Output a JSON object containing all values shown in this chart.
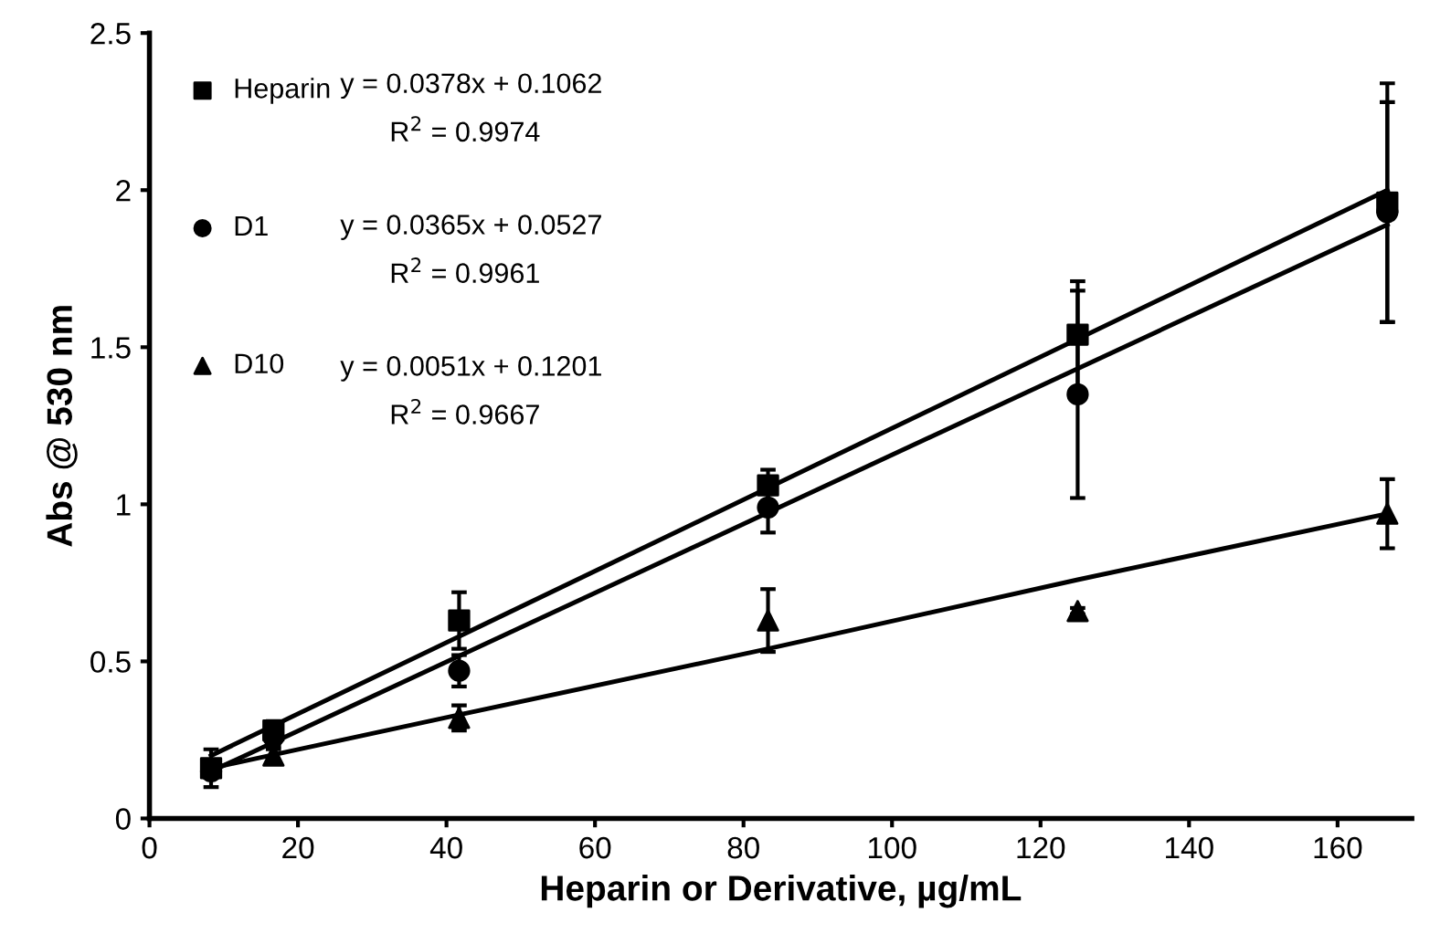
{
  "chart_data": {
    "type": "scatter",
    "xlabel": "Heparin or Derivative, µg/mL",
    "ylabel": "Abs @ 530 nm",
    "xlim": [
      0,
      170
    ],
    "xticks": [
      0,
      20,
      40,
      60,
      80,
      100,
      120,
      140,
      160
    ],
    "ylim": [
      0,
      2.5
    ],
    "yticks": [
      0,
      0.5,
      1,
      1.5,
      2,
      2.5
    ],
    "grid": false,
    "legend": "top left",
    "annotations": [
      "y = 0.0378x + 0.1062",
      "R$^{2}$ = 0.9974",
      "y = 0.0365x + 0.0527",
      "R$^{2}$ = 0.9961",
      "y = 0.0051x + 0.1201",
      "R$^{2}$ = 0.9667"
    ],
    "series": [
      {
        "name": "Heparin",
        "marker": "square",
        "color": "#000000",
        "x": [
          8.3,
          16.7,
          41.7,
          83.3,
          125,
          166.7
        ],
        "values": [
          0.16,
          0.28,
          0.63,
          1.06,
          1.54,
          1.96
        ],
        "errors": [
          0.06,
          0.03,
          0.09,
          0.05,
          0.17,
          0.38
        ]
      },
      {
        "name": "D1",
        "marker": "circle",
        "color": "#000000",
        "x": [
          8.3,
          16.7,
          41.7,
          83.3,
          125,
          166.7
        ],
        "values": [
          0.15,
          0.26,
          0.47,
          0.99,
          1.35,
          1.93
        ],
        "errors": [
          0.02,
          0.03,
          0.05,
          0.08,
          0.33,
          0.35
        ]
      },
      {
        "name": "D10",
        "marker": "triangle",
        "color": "#000000",
        "x": [
          16.7,
          41.7,
          83.3,
          125,
          166.7
        ],
        "values": [
          0.2,
          0.32,
          0.63,
          0.66,
          0.97
        ],
        "errors": [
          0.02,
          0.04,
          0.1,
          0.01,
          0.11
        ]
      },
      {
        "type": "line",
        "color": "#000000",
        "x": [
          8.3,
          166.7
        ],
        "values": [
          0.2,
          2.0
        ]
      },
      {
        "type": "line",
        "color": "#000000",
        "x": [
          8.3,
          166.7
        ],
        "values": [
          0.15,
          1.89
        ]
      },
      {
        "type": "line",
        "color": "#000000",
        "x": [
          8.3,
          41.7,
          83.3,
          125,
          166.7
        ],
        "values": [
          0.16,
          0.33,
          0.54,
          0.76,
          0.97
        ]
      }
    ]
  }
}
